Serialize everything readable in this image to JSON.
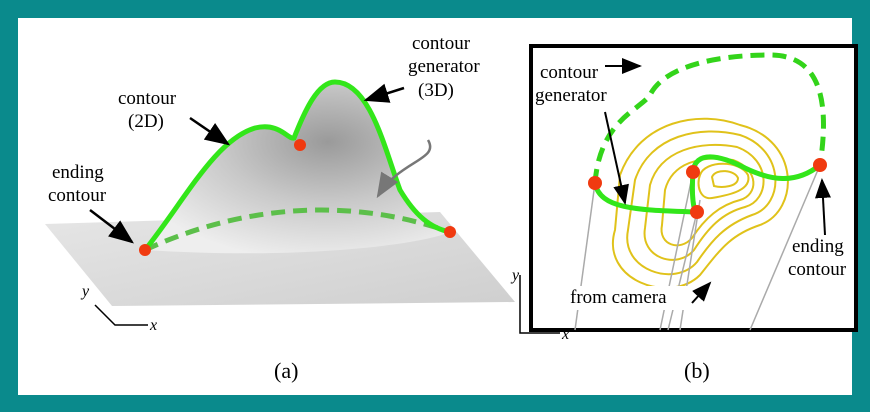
{
  "panel_a": {
    "contour_label": [
      "contour",
      "(2D)"
    ],
    "generator_label": [
      "contour",
      "generator",
      "(3D)"
    ],
    "ending_label": [
      "ending",
      "contour"
    ],
    "axis_y": "y",
    "axis_x": "x",
    "caption": "(a)"
  },
  "panel_b": {
    "generator_label": [
      "contour",
      "generator"
    ],
    "ending_label": [
      "ending",
      "contour"
    ],
    "camera_label": "from camera",
    "axis_y": "y",
    "axis_x": "x",
    "caption": "(b)"
  }
}
